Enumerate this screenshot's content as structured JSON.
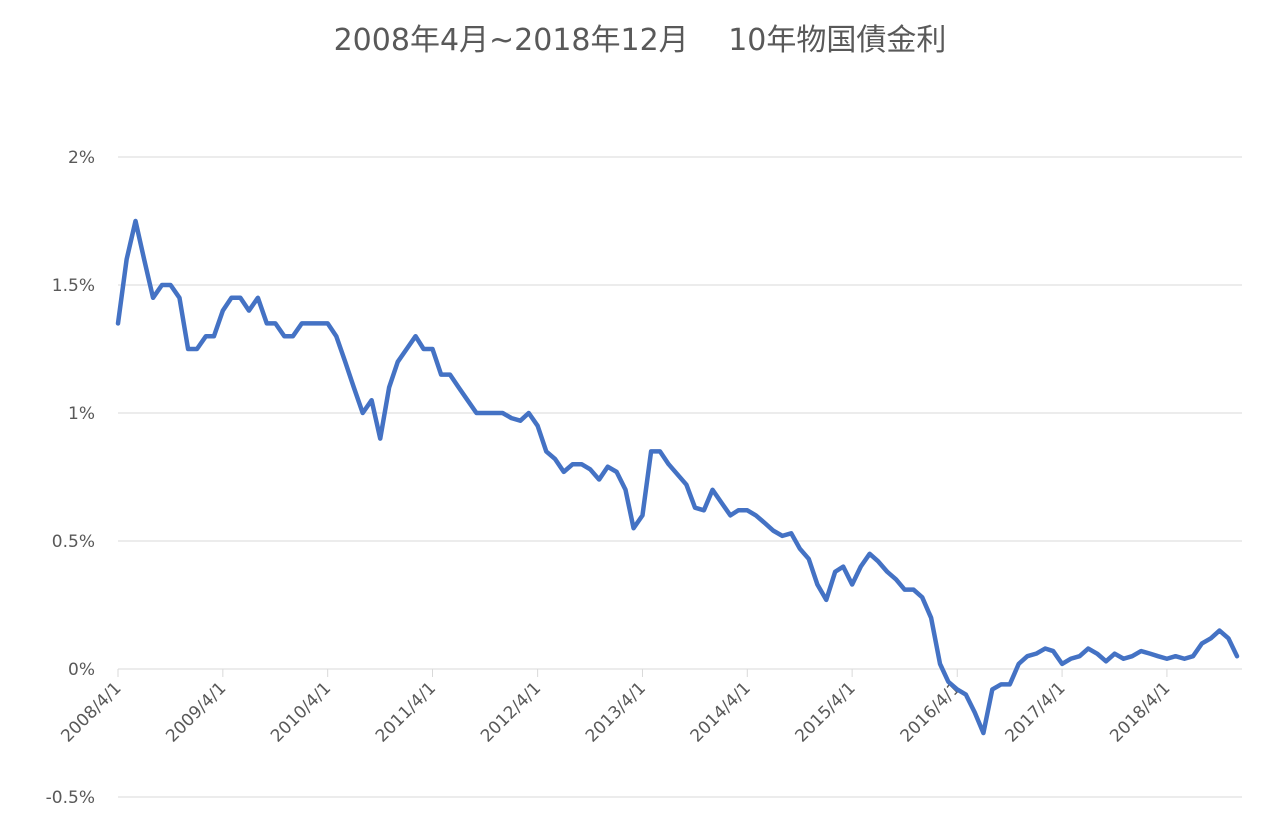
{
  "chart_data": {
    "type": "line",
    "title": "2008年4月~2018年12月　 10年物国債金利",
    "x": [
      "2008/4/1",
      "2008/5/1",
      "2008/6/1",
      "2008/7/1",
      "2008/8/1",
      "2008/9/1",
      "2008/10/1",
      "2008/11/1",
      "2008/12/1",
      "2009/1/1",
      "2009/2/1",
      "2009/3/1",
      "2009/4/1",
      "2009/5/1",
      "2009/6/1",
      "2009/7/1",
      "2009/8/1",
      "2009/9/1",
      "2009/10/1",
      "2009/11/1",
      "2009/12/1",
      "2010/1/1",
      "2010/2/1",
      "2010/3/1",
      "2010/4/1",
      "2010/5/1",
      "2010/6/1",
      "2010/7/1",
      "2010/8/1",
      "2010/9/1",
      "2010/10/1",
      "2010/11/1",
      "2010/12/1",
      "2011/1/1",
      "2011/2/1",
      "2011/3/1",
      "2011/4/1",
      "2011/5/1",
      "2011/6/1",
      "2011/7/1",
      "2011/8/1",
      "2011/9/1",
      "2011/10/1",
      "2011/11/1",
      "2011/12/1",
      "2012/1/1",
      "2012/2/1",
      "2012/3/1",
      "2012/4/1",
      "2012/5/1",
      "2012/6/1",
      "2012/7/1",
      "2012/8/1",
      "2012/9/1",
      "2012/10/1",
      "2012/11/1",
      "2012/12/1",
      "2013/1/1",
      "2013/2/1",
      "2013/3/1",
      "2013/4/1",
      "2013/5/1",
      "2013/6/1",
      "2013/7/1",
      "2013/8/1",
      "2013/9/1",
      "2013/10/1",
      "2013/11/1",
      "2013/12/1",
      "2014/1/1",
      "2014/2/1",
      "2014/3/1",
      "2014/4/1",
      "2014/5/1",
      "2014/6/1",
      "2014/7/1",
      "2014/8/1",
      "2014/9/1",
      "2014/10/1",
      "2014/11/1",
      "2014/12/1",
      "2015/1/1",
      "2015/2/1",
      "2015/3/1",
      "2015/4/1",
      "2015/5/1",
      "2015/6/1",
      "2015/7/1",
      "2015/8/1",
      "2015/9/1",
      "2015/10/1",
      "2015/11/1",
      "2015/12/1",
      "2016/1/1",
      "2016/2/1",
      "2016/3/1",
      "2016/4/1",
      "2016/5/1",
      "2016/6/1",
      "2016/7/1",
      "2016/8/1",
      "2016/9/1",
      "2016/10/1",
      "2016/11/1",
      "2016/12/1",
      "2017/1/1",
      "2017/2/1",
      "2017/3/1",
      "2017/4/1",
      "2017/5/1",
      "2017/6/1",
      "2017/7/1",
      "2017/8/1",
      "2017/9/1",
      "2017/10/1",
      "2017/11/1",
      "2017/12/1",
      "2018/1/1",
      "2018/2/1",
      "2018/3/1",
      "2018/4/1",
      "2018/5/1",
      "2018/6/1",
      "2018/7/1",
      "2018/8/1",
      "2018/9/1",
      "2018/10/1",
      "2018/11/1",
      "2018/12/1"
    ],
    "series": [
      {
        "color": "#4472c4",
        "values": [
          1.35,
          1.6,
          1.75,
          1.6,
          1.45,
          1.5,
          1.5,
          1.45,
          1.25,
          1.25,
          1.3,
          1.3,
          1.4,
          1.45,
          1.45,
          1.4,
          1.45,
          1.35,
          1.35,
          1.3,
          1.3,
          1.35,
          1.35,
          1.35,
          1.35,
          1.3,
          1.2,
          1.1,
          1.0,
          1.05,
          0.9,
          1.1,
          1.2,
          1.25,
          1.3,
          1.25,
          1.25,
          1.15,
          1.15,
          1.1,
          1.05,
          1.0,
          1.0,
          1.0,
          1.0,
          0.98,
          0.97,
          1.0,
          0.95,
          0.85,
          0.82,
          0.77,
          0.8,
          0.8,
          0.78,
          0.74,
          0.79,
          0.77,
          0.7,
          0.55,
          0.6,
          0.85,
          0.85,
          0.8,
          0.76,
          0.72,
          0.63,
          0.62,
          0.7,
          0.65,
          0.6,
          0.62,
          0.62,
          0.6,
          0.57,
          0.54,
          0.52,
          0.53,
          0.47,
          0.43,
          0.33,
          0.27,
          0.38,
          0.4,
          0.33,
          0.4,
          0.45,
          0.42,
          0.38,
          0.35,
          0.31,
          0.31,
          0.28,
          0.2,
          0.02,
          -0.05,
          -0.08,
          -0.1,
          -0.17,
          -0.25,
          -0.08,
          -0.06,
          -0.06,
          0.02,
          0.05,
          0.06,
          0.08,
          0.07,
          0.02,
          0.04,
          0.05,
          0.08,
          0.06,
          0.03,
          0.06,
          0.04,
          0.05,
          0.07,
          0.06,
          0.05,
          0.04,
          0.05,
          0.04,
          0.05,
          0.1,
          0.12,
          0.15,
          0.12,
          0.05
        ]
      }
    ],
    "xlim": [
      "2008/4/1",
      "2018/12/1"
    ],
    "xticks": [
      "2008/4/1",
      "2009/4/1",
      "2010/4/1",
      "2011/4/1",
      "2012/4/1",
      "2013/4/1",
      "2014/4/1",
      "2015/4/1",
      "2016/4/1",
      "2017/4/1",
      "2018/4/1"
    ],
    "ylim": [
      -0.5,
      2
    ],
    "yticks": [
      {
        "value": -0.5,
        "label": "-0.5%"
      },
      {
        "value": 0,
        "label": "0%"
      },
      {
        "value": 0.5,
        "label": "0.5%"
      },
      {
        "value": 1,
        "label": "1%"
      },
      {
        "value": 1.5,
        "label": "1.5%"
      },
      {
        "value": 2,
        "label": "2%"
      }
    ],
    "grid": true
  }
}
